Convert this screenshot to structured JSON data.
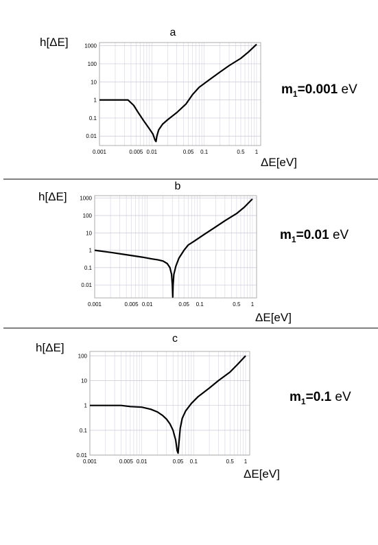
{
  "chart_data": [
    {
      "type": "line",
      "title": "a",
      "xlabel": "ΔE[eV]",
      "ylabel": "h[ΔE]",
      "xscale": "log",
      "yscale": "log",
      "xlim": [
        0.001,
        1.2
      ],
      "ylim": [
        0.003,
        1500
      ],
      "grid": true,
      "xticks": [
        {
          "v": 0.001,
          "label": "0.001"
        },
        {
          "v": 0.005,
          "label": "0.005"
        },
        {
          "v": 0.01,
          "label": "0.01"
        },
        {
          "v": 0.05,
          "label": "0.05"
        },
        {
          "v": 0.1,
          "label": "0.1"
        },
        {
          "v": 0.5,
          "label": "0.5"
        },
        {
          "v": 1,
          "label": "1"
        }
      ],
      "yticks": [
        {
          "v": 0.01,
          "label": "0.01"
        },
        {
          "v": 0.1,
          "label": "0.1"
        },
        {
          "v": 1,
          "label": "1"
        },
        {
          "v": 10,
          "label": "10"
        },
        {
          "v": 100,
          "label": "100"
        },
        {
          "v": 1000,
          "label": "1000"
        }
      ],
      "annotation": {
        "bold": "m1=0.001",
        "unit": " eV"
      },
      "series": [
        {
          "x": [
            0.001,
            0.002,
            0.0035,
            0.0045,
            0.0055,
            0.007,
            0.009,
            0.0105,
            0.0115,
            0.012,
            0.0125,
            0.0135,
            0.016,
            0.02,
            0.03,
            0.045,
            0.06,
            0.08,
            0.12,
            0.2,
            0.3,
            0.5,
            0.7,
            1.0
          ],
          "y": [
            1,
            1,
            1,
            0.5,
            0.2,
            0.07,
            0.025,
            0.013,
            0.006,
            0.005,
            0.01,
            0.022,
            0.045,
            0.08,
            0.2,
            0.6,
            2,
            5,
            12,
            35,
            80,
            200,
            450,
            1200
          ]
        }
      ]
    },
    {
      "type": "line",
      "title": "b",
      "xlabel": "ΔE[eV]",
      "ylabel": "h[ΔE]",
      "xscale": "log",
      "yscale": "log",
      "xlim": [
        0.001,
        1.2
      ],
      "ylim": [
        0.0018,
        1400
      ],
      "grid": true,
      "xticks": [
        {
          "v": 0.001,
          "label": "0.001"
        },
        {
          "v": 0.005,
          "label": "0.005"
        },
        {
          "v": 0.01,
          "label": "0.01"
        },
        {
          "v": 0.05,
          "label": "0.05"
        },
        {
          "v": 0.1,
          "label": "0.1"
        },
        {
          "v": 0.5,
          "label": "0.5"
        },
        {
          "v": 1,
          "label": "1"
        }
      ],
      "yticks": [
        {
          "v": 0.01,
          "label": "0.01"
        },
        {
          "v": 0.1,
          "label": "0.1"
        },
        {
          "v": 1,
          "label": "1"
        },
        {
          "v": 10,
          "label": "10"
        },
        {
          "v": 100,
          "label": "100"
        },
        {
          "v": 1000,
          "label": "1000"
        }
      ],
      "annotation": {
        "bold": "m1=0.01",
        "unit": " eV"
      },
      "series": [
        {
          "x": [
            0.001,
            0.002,
            0.004,
            0.008,
            0.012,
            0.016,
            0.02,
            0.024,
            0.027,
            0.029,
            0.03,
            0.0305,
            0.031,
            0.032,
            0.035,
            0.04,
            0.05,
            0.06,
            0.08,
            0.12,
            0.2,
            0.3,
            0.5,
            0.7,
            1.0
          ],
          "y": [
            1,
            0.75,
            0.55,
            0.4,
            0.32,
            0.28,
            0.24,
            0.17,
            0.1,
            0.04,
            0.01,
            0.002,
            0.01,
            0.04,
            0.12,
            0.35,
            1,
            2,
            3.5,
            8,
            22,
            50,
            130,
            300,
            900
          ]
        }
      ]
    },
    {
      "type": "line",
      "title": "c",
      "xlabel": "ΔE[eV]",
      "ylabel": "h[ΔE]",
      "xscale": "log",
      "yscale": "log",
      "xlim": [
        0.001,
        1.2
      ],
      "ylim": [
        0.01,
        150
      ],
      "grid": true,
      "xticks": [
        {
          "v": 0.001,
          "label": "0.001"
        },
        {
          "v": 0.005,
          "label": "0.005"
        },
        {
          "v": 0.01,
          "label": "0.01"
        },
        {
          "v": 0.05,
          "label": "0.05"
        },
        {
          "v": 0.1,
          "label": "0.1"
        },
        {
          "v": 0.5,
          "label": "0.5"
        },
        {
          "v": 1,
          "label": "1"
        }
      ],
      "yticks": [
        {
          "v": 0.01,
          "label": "0.01"
        },
        {
          "v": 0.1,
          "label": "0.1"
        },
        {
          "v": 1,
          "label": "1"
        },
        {
          "v": 10,
          "label": "10"
        },
        {
          "v": 100,
          "label": "100"
        }
      ],
      "annotation": {
        "bold": "m1=0.1",
        "unit": " eV"
      },
      "series": [
        {
          "x": [
            0.001,
            0.002,
            0.004,
            0.006,
            0.01,
            0.015,
            0.02,
            0.025,
            0.03,
            0.035,
            0.04,
            0.045,
            0.048,
            0.05,
            0.052,
            0.055,
            0.06,
            0.07,
            0.09,
            0.12,
            0.2,
            0.3,
            0.5,
            0.7,
            1.0
          ],
          "y": [
            1,
            1,
            1,
            0.9,
            0.85,
            0.7,
            0.55,
            0.4,
            0.28,
            0.18,
            0.1,
            0.04,
            0.015,
            0.012,
            0.03,
            0.12,
            0.3,
            0.6,
            1.2,
            2.2,
            5,
            10,
            22,
            45,
            100
          ]
        }
      ]
    }
  ]
}
